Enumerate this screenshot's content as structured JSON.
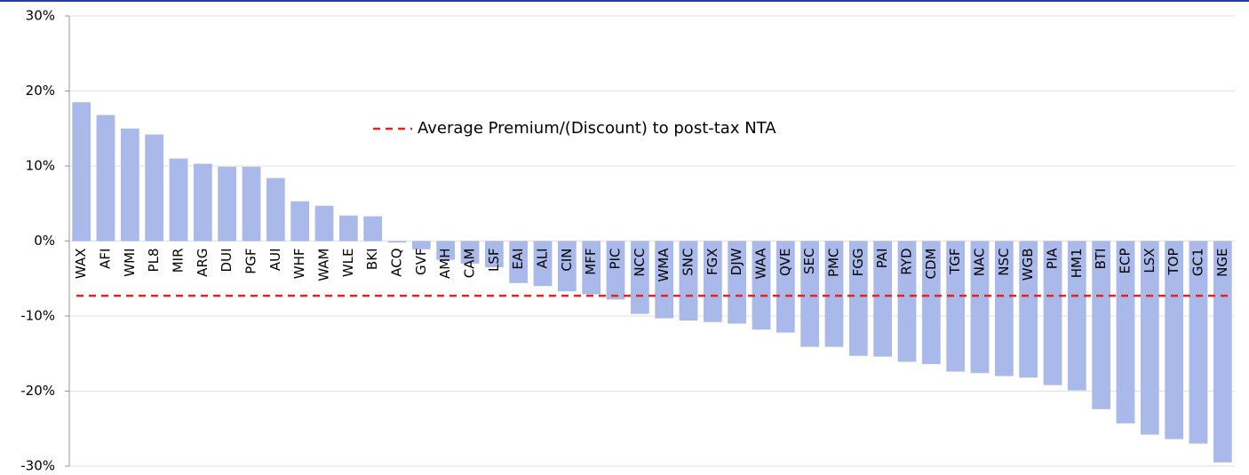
{
  "chart_data": {
    "type": "bar",
    "categories": [
      "WAX",
      "AFI",
      "WMI",
      "PL8",
      "MIR",
      "ARG",
      "DUI",
      "PGF",
      "AUI",
      "WHF",
      "WAM",
      "WLE",
      "BKI",
      "ACQ",
      "GVF",
      "AMH",
      "CAM",
      "LSF",
      "EAI",
      "ALI",
      "CIN",
      "MFF",
      "PIC",
      "NCC",
      "WMA",
      "SNC",
      "FGX",
      "DJW",
      "WAA",
      "QVE",
      "SEC",
      "PMC",
      "FGG",
      "PAI",
      "RYD",
      "CDM",
      "TGF",
      "NAC",
      "NSC",
      "WGB",
      "PIA",
      "HM1",
      "BTI",
      "ECP",
      "LSX",
      "TOP",
      "GC1",
      "NGE"
    ],
    "values": [
      18.5,
      16.8,
      15.0,
      14.2,
      11.0,
      10.3,
      9.9,
      9.9,
      8.4,
      5.3,
      4.7,
      3.4,
      3.3,
      -0.2,
      -1.1,
      -2.5,
      -3.0,
      -3.5,
      -5.6,
      -6.0,
      -6.7,
      -7.1,
      -7.8,
      -9.7,
      -10.3,
      -10.6,
      -10.8,
      -11.0,
      -11.8,
      -12.2,
      -14.1,
      -14.1,
      -15.3,
      -15.4,
      -16.1,
      -16.4,
      -17.4,
      -17.6,
      -18.0,
      -18.2,
      -19.2,
      -19.9,
      -22.4,
      -24.3,
      -25.8,
      -26.4,
      -27.0,
      -29.5
    ],
    "color": "#a9b9ea",
    "average": {
      "name": "Average Premium/(Discount) to post-tax NTA",
      "value": -7.3,
      "color": "#e8231f"
    },
    "ylim": [
      -30,
      30
    ],
    "yticks": [
      {
        "value": 30,
        "label": "30%"
      },
      {
        "value": 20,
        "label": "20%"
      },
      {
        "value": 10,
        "label": "10%"
      },
      {
        "value": 0,
        "label": "0%"
      },
      {
        "value": -10,
        "label": "-10%"
      },
      {
        "value": -20,
        "label": "-20%"
      },
      {
        "value": -30,
        "label": "-30%"
      }
    ],
    "grid": true
  }
}
